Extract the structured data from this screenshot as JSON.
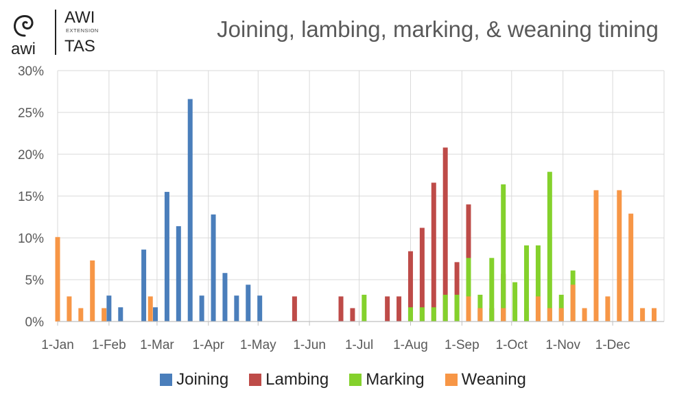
{
  "logo": {
    "awi_small": "awi",
    "awi_big": "AWI",
    "extension": "EXTENSION",
    "tas": "TAS"
  },
  "chart_data": {
    "type": "bar",
    "title": "Joining, lambing, marking, & weaning timing",
    "xlabel": "",
    "ylabel": "",
    "ylim": [
      0,
      30
    ],
    "yticks": [
      "0%",
      "5%",
      "10%",
      "15%",
      "20%",
      "25%",
      "30%"
    ],
    "x_ticks": [
      "1-Jan",
      "1-Feb",
      "1-Mar",
      "1-Apr",
      "1-May",
      "1-Jun",
      "1-Jul",
      "1-Aug",
      "1-Sep",
      "1-Oct",
      "1-Nov",
      "1-Dec"
    ],
    "grid": true,
    "legend": "bottom",
    "colors": {
      "Joining": "#4a7ebb",
      "Lambing": "#be4b48",
      "Marking": "#84d12c",
      "Weaning": "#f79646"
    },
    "series": [
      {
        "name": "Joining",
        "points": [
          {
            "x": "1-Feb",
            "y": 3.1
          },
          {
            "x": "8-Feb",
            "y": 1.7
          },
          {
            "x": "22-Feb",
            "y": 8.6
          },
          {
            "x": "29-Feb",
            "y": 1.7
          },
          {
            "x": "7-Mar",
            "y": 15.5
          },
          {
            "x": "14-Mar",
            "y": 11.4
          },
          {
            "x": "21-Mar",
            "y": 26.6
          },
          {
            "x": "28-Mar",
            "y": 3.1
          },
          {
            "x": "4-Apr",
            "y": 12.8
          },
          {
            "x": "11-Apr",
            "y": 5.8
          },
          {
            "x": "18-Apr",
            "y": 3.1
          },
          {
            "x": "25-Apr",
            "y": 4.4
          },
          {
            "x": "2-May",
            "y": 3.1
          }
        ]
      },
      {
        "name": "Lambing",
        "points": [
          {
            "x": "23-May",
            "y": 3.0
          },
          {
            "x": "20-Jun",
            "y": 3.0
          },
          {
            "x": "27-Jun",
            "y": 1.6
          },
          {
            "x": "18-Jul",
            "y": 3.0
          },
          {
            "x": "25-Jul",
            "y": 3.0
          },
          {
            "x": "1-Aug",
            "y": 8.4
          },
          {
            "x": "8-Aug",
            "y": 11.2
          },
          {
            "x": "15-Aug",
            "y": 16.6
          },
          {
            "x": "22-Aug",
            "y": 20.8
          },
          {
            "x": "29-Aug",
            "y": 7.1
          },
          {
            "x": "5-Sep",
            "y": 14.0
          },
          {
            "x": "12-Sep",
            "y": 1.6
          },
          {
            "x": "19-Sep",
            "y": 1.6
          },
          {
            "x": "26-Sep",
            "y": 5.7
          },
          {
            "x": "10-Oct",
            "y": 1.6
          }
        ]
      },
      {
        "name": "Marking",
        "points": [
          {
            "x": "4-Jul",
            "y": 3.2
          },
          {
            "x": "1-Aug",
            "y": 1.7
          },
          {
            "x": "8-Aug",
            "y": 1.7
          },
          {
            "x": "15-Aug",
            "y": 1.7
          },
          {
            "x": "22-Aug",
            "y": 3.2
          },
          {
            "x": "29-Aug",
            "y": 3.2
          },
          {
            "x": "5-Sep",
            "y": 7.6
          },
          {
            "x": "12-Sep",
            "y": 3.2
          },
          {
            "x": "19-Sep",
            "y": 7.6
          },
          {
            "x": "26-Sep",
            "y": 16.4
          },
          {
            "x": "3-Oct",
            "y": 4.7
          },
          {
            "x": "10-Oct",
            "y": 9.1
          },
          {
            "x": "17-Oct",
            "y": 9.1
          },
          {
            "x": "24-Oct",
            "y": 17.9
          },
          {
            "x": "31-Oct",
            "y": 3.2
          },
          {
            "x": "7-Nov",
            "y": 6.1
          }
        ]
      },
      {
        "name": "Weaning",
        "points": [
          {
            "x": "1-Jan",
            "y": 10.1
          },
          {
            "x": "8-Jan",
            "y": 3.0
          },
          {
            "x": "15-Jan",
            "y": 1.6
          },
          {
            "x": "22-Jan",
            "y": 7.3
          },
          {
            "x": "29-Jan",
            "y": 1.6
          },
          {
            "x": "26-Feb",
            "y": 3.0
          },
          {
            "x": "5-Sep",
            "y": 3.0
          },
          {
            "x": "12-Sep",
            "y": 1.6
          },
          {
            "x": "26-Sep",
            "y": 1.6
          },
          {
            "x": "17-Oct",
            "y": 3.0
          },
          {
            "x": "24-Oct",
            "y": 1.6
          },
          {
            "x": "31-Oct",
            "y": 1.6
          },
          {
            "x": "7-Nov",
            "y": 4.4
          },
          {
            "x": "14-Nov",
            "y": 1.6
          },
          {
            "x": "21-Nov",
            "y": 15.7
          },
          {
            "x": "28-Nov",
            "y": 3.0
          },
          {
            "x": "5-Dec",
            "y": 15.7
          },
          {
            "x": "12-Dec",
            "y": 12.9
          },
          {
            "x": "19-Dec",
            "y": 1.6
          },
          {
            "x": "26-Dec",
            "y": 1.6
          }
        ]
      }
    ]
  }
}
